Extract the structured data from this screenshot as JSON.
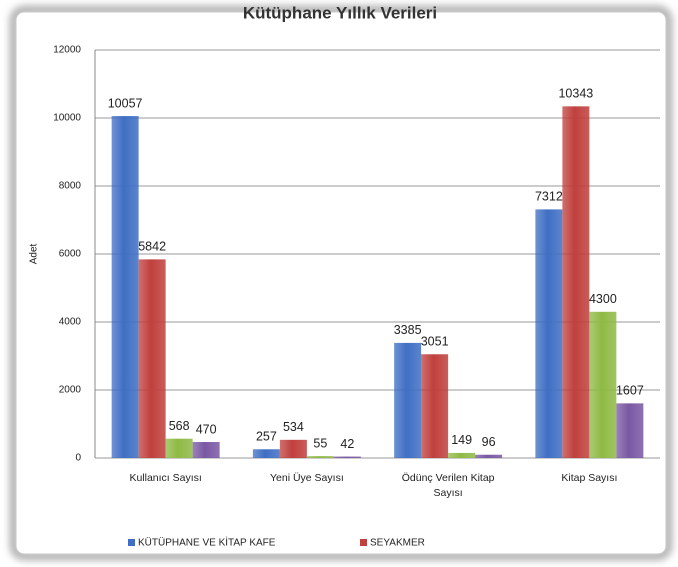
{
  "chart_data": {
    "type": "bar",
    "title": "Kütüphane Yıllık Verileri",
    "y_label": "Adet",
    "categories": [
      "Kullanıcı Sayısı",
      "Yeni Üye Sayısı",
      "Ödünç Verilen Kitap Sayısı",
      "Kitap Sayısı"
    ],
    "series": [
      {
        "name": "KÜTÜPHANE VE KİTAP KAFE",
        "color": "#3f6fc4",
        "values": [
          10057,
          257,
          3385,
          7312
        ]
      },
      {
        "name": "SEYAKMER",
        "color": "#c0403d",
        "values": [
          5842,
          534,
          3051,
          10343
        ]
      },
      {
        "color": "#8fba45",
        "values": [
          568,
          55,
          149,
          4300
        ]
      },
      {
        "color": "#7a58a4",
        "values": [
          470,
          42,
          96,
          1607
        ]
      }
    ],
    "ylim": [
      0,
      12000
    ],
    "yticks": [
      0,
      2000,
      4000,
      6000,
      8000,
      10000,
      12000
    ],
    "grid": true
  }
}
